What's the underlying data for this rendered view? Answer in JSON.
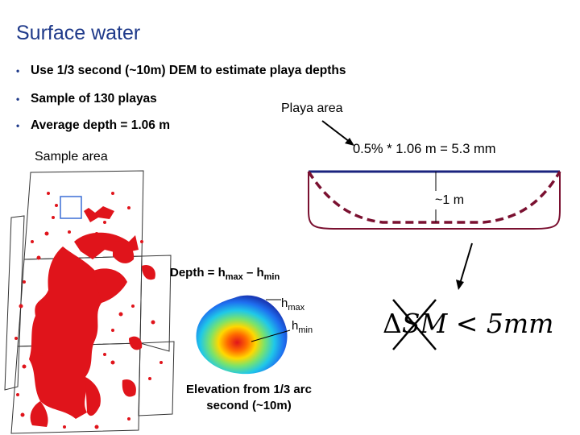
{
  "title": "Surface water",
  "bullets": [
    "Use 1/3 second (~10m) DEM to estimate playa depths",
    "Sample of 130 playas",
    "Average depth  = 1.06 m"
  ],
  "labels": {
    "playa_area": "Playa area",
    "sample_area": "Sample area",
    "equation": "0.5% * 1.06 m = 5.3 mm",
    "depth_approx": "~1 m",
    "depth_formula_prefix": "Depth  = h",
    "depth_formula_max_sub": "max",
    "depth_formula_minus": " – h",
    "depth_formula_min_sub": "min",
    "h": "h",
    "max_sub": "max",
    "min_sub": "min",
    "elevation": "Elevation from 1/3 arc second (~10m)",
    "dsm_delta": "Δ",
    "dsm_sm": "SM",
    "dsm_lt": " < ",
    "dsm_value": "5mm"
  },
  "colors": {
    "title": "#1f3a8a",
    "playa_fill": "#e0141b",
    "bowl_outline": "#7a1030",
    "bowl_water": "#1a237e"
  }
}
